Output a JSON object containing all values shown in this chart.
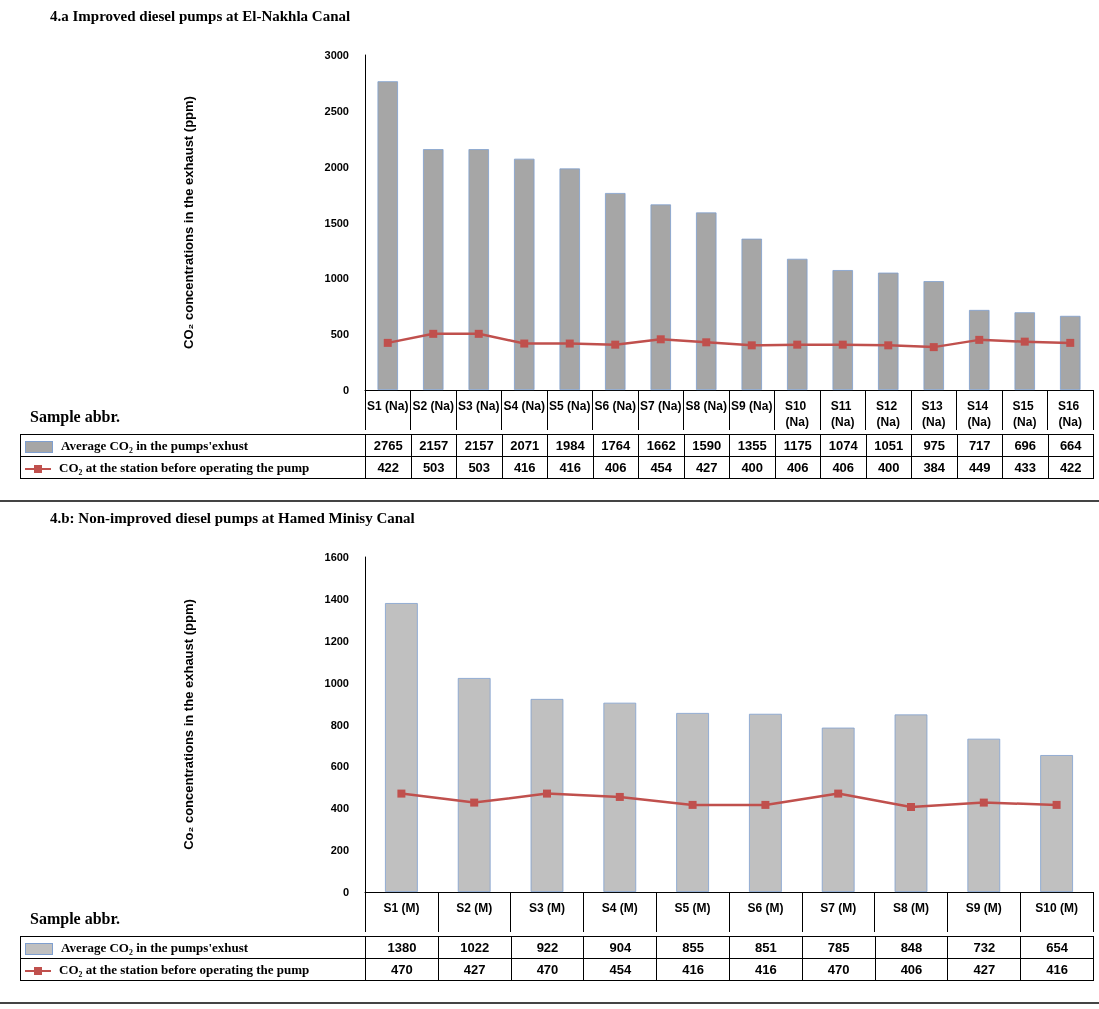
{
  "chart_data": [
    {
      "type": "bar",
      "title": "4.a Improved diesel pumps at El-Nakhla Canal",
      "ylabel": "CO₂ concentrations in the exhaust (ppm)",
      "annotations": [
        "Sample abbr."
      ],
      "categories": [
        "S1 (Na)",
        "S2 (Na)",
        "S3 (Na)",
        "S4 (Na)",
        "S5 (Na)",
        "S6 (Na)",
        "S7 (Na)",
        "S8 (Na)",
        "S9 (Na)",
        "S10 (Na)",
        "S11 (Na)",
        "S12 (Na)",
        "S13 (Na)",
        "S14 (Na)",
        "S15 (Na)",
        "S16 (Na)"
      ],
      "series": [
        {
          "name": "Average CO₂ in the pumps'exhust",
          "color": "#a6a6a6",
          "values": [
            2765,
            2157,
            2157,
            2071,
            1984,
            1764,
            1662,
            1590,
            1355,
            1175,
            1074,
            1051,
            975,
            717,
            696,
            664
          ]
        },
        {
          "name": "CO₂ at the station before operating the pump",
          "type": "line",
          "color": "#c0504d",
          "values": [
            422,
            503,
            503,
            416,
            416,
            406,
            454,
            427,
            400,
            406,
            406,
            400,
            384,
            449,
            433,
            422
          ]
        }
      ],
      "ylim": [
        0,
        3000
      ],
      "yticks": [
        0,
        500,
        1000,
        1500,
        2000,
        2500,
        3000
      ],
      "grid": false,
      "legend": "bottom left",
      "marker": "square",
      "data_labels": true
    },
    {
      "type": "bar",
      "title": "4.b: Non-improved diesel pumps at Hamed Minisy Canal",
      "ylabel": "Co₂ concentrations in the exhaust (ppm)",
      "annotations": [
        "Sample abbr."
      ],
      "categories": [
        "S1 (M)",
        "S2 (M)",
        "S3 (M)",
        "S4 (M)",
        "S5 (M)",
        "S6 (M)",
        "S7 (M)",
        "S8 (M)",
        "S9 (M)",
        "S10 (M)"
      ],
      "series": [
        {
          "name": "Average CO₂ in the pumps'exhust",
          "color": "#c0c0c0",
          "values": [
            1380,
            1022,
            922,
            904,
            855,
            851,
            785,
            848,
            732,
            654
          ]
        },
        {
          "name": "CO₂ at the station before operating the pump",
          "type": "line",
          "color": "#c0504d",
          "values": [
            470,
            427,
            470,
            454,
            416,
            416,
            470,
            406,
            427,
            416
          ]
        }
      ],
      "ylim": [
        0,
        1600
      ],
      "yticks": [
        0,
        200,
        400,
        600,
        800,
        1000,
        1200,
        1400,
        1600
      ],
      "grid": false,
      "legend": "bottom left",
      "marker": "square",
      "data_labels": true
    }
  ]
}
